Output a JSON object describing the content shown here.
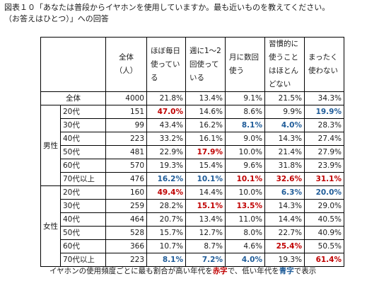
{
  "title": {
    "line1": "図表１０「あなたは普段からイヤホンを使用していますか。最も近いものを教えてください。",
    "line2": "（お答えはひとつ）」への回答"
  },
  "columns": [
    "全体\n（人）",
    "ほぼ毎日\n使ってい\nる",
    "週に1～2\n回使って\nいる",
    "月に数回\n使う",
    "習慣的に\n使うこと\nはほとん\nどない",
    "まったく\n使わない"
  ],
  "total_row": {
    "label": "全体",
    "values": [
      "4000",
      "21.8%",
      "13.4%",
      "9.1%",
      "21.5%",
      "34.3%"
    ]
  },
  "groups": [
    {
      "label": "男性",
      "rows": [
        {
          "age": "20代",
          "values": [
            "151",
            "47.0%",
            "14.6%",
            "8.6%",
            "9.9%",
            "19.9%"
          ],
          "marks": [
            "",
            "red",
            "",
            "",
            "",
            "blue"
          ]
        },
        {
          "age": "30代",
          "values": [
            "99",
            "43.4%",
            "16.2%",
            "8.1%",
            "4.0%",
            "28.3%"
          ],
          "marks": [
            "",
            "",
            "",
            "blue",
            "blue",
            ""
          ]
        },
        {
          "age": "40代",
          "values": [
            "223",
            "33.2%",
            "16.1%",
            "9.0%",
            "14.3%",
            "27.4%"
          ],
          "marks": [
            "",
            "",
            "",
            "",
            "",
            ""
          ]
        },
        {
          "age": "50代",
          "values": [
            "481",
            "22.9%",
            "17.9%",
            "10.0%",
            "21.4%",
            "27.9%"
          ],
          "marks": [
            "",
            "",
            "red",
            "",
            "",
            ""
          ]
        },
        {
          "age": "60代",
          "values": [
            "570",
            "19.3%",
            "15.4%",
            "9.6%",
            "31.8%",
            "23.9%"
          ],
          "marks": [
            "",
            "",
            "",
            "",
            "",
            ""
          ]
        },
        {
          "age": "70代以上",
          "values": [
            "476",
            "16.2%",
            "10.1%",
            "10.1%",
            "32.6%",
            "31.1%"
          ],
          "marks": [
            "",
            "blue",
            "blue",
            "red",
            "red",
            "red"
          ]
        }
      ]
    },
    {
      "label": "女性",
      "rows": [
        {
          "age": "20代",
          "values": [
            "160",
            "49.4%",
            "14.4%",
            "10.0%",
            "6.3%",
            "20.0%"
          ],
          "marks": [
            "",
            "red",
            "",
            "",
            "blue",
            "blue"
          ]
        },
        {
          "age": "30代",
          "values": [
            "259",
            "28.2%",
            "15.1%",
            "13.5%",
            "14.3%",
            "29.0%"
          ],
          "marks": [
            "",
            "",
            "red",
            "red",
            "",
            ""
          ]
        },
        {
          "age": "40代",
          "values": [
            "464",
            "20.7%",
            "13.4%",
            "11.0%",
            "14.4%",
            "40.5%"
          ],
          "marks": [
            "",
            "",
            "",
            "",
            "",
            ""
          ]
        },
        {
          "age": "50代",
          "values": [
            "528",
            "15.7%",
            "12.7%",
            "8.0%",
            "22.7%",
            "40.9%"
          ],
          "marks": [
            "",
            "",
            "",
            "",
            "",
            ""
          ]
        },
        {
          "age": "60代",
          "values": [
            "366",
            "10.7%",
            "8.7%",
            "4.6%",
            "25.4%",
            "50.5%"
          ],
          "marks": [
            "",
            "",
            "",
            "",
            "red",
            ""
          ]
        },
        {
          "age": "70代以上",
          "values": [
            "223",
            "8.1%",
            "7.2%",
            "4.0%",
            "19.3%",
            "61.4%"
          ],
          "marks": [
            "",
            "blue",
            "blue",
            "blue",
            "",
            "red"
          ]
        }
      ]
    }
  ],
  "note": {
    "part1": "イヤホンの使用頻度ごとに最も割合が高い年代を",
    "red_word": "赤字",
    "part2": "で、低い年代を",
    "blue_word": "青字",
    "part3": "で表示"
  },
  "colors": {
    "red": "#c00000",
    "blue": "#1f5c99"
  }
}
